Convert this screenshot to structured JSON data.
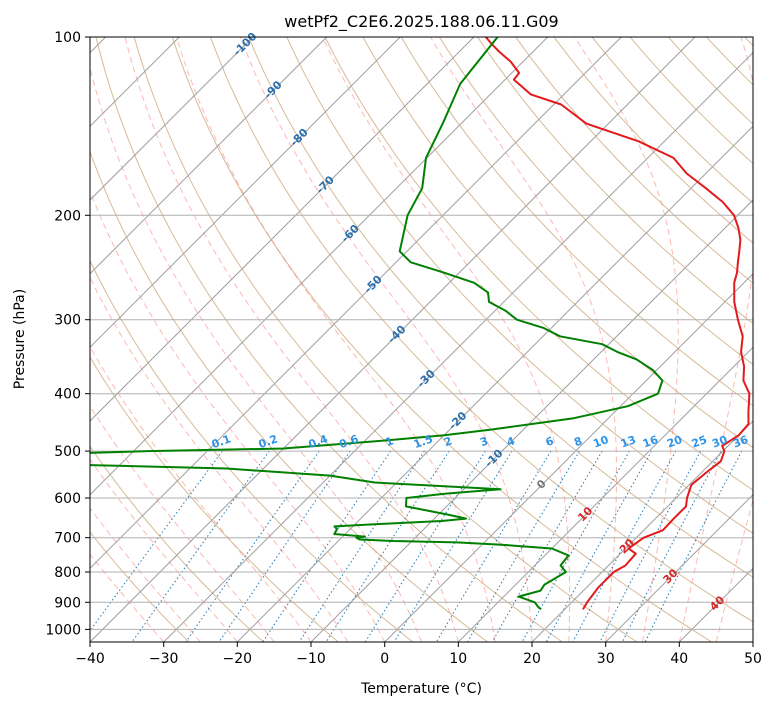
{
  "chart_data": {
    "type": "skew-t",
    "title": "wetPf2_C2E6.2025.188.06.11.G09",
    "xlabel": "Temperature (°C)",
    "ylabel": "Pressure (hPa)",
    "xlim": [
      -40,
      50
    ],
    "ylim": [
      1050,
      100
    ],
    "y_scale": "log",
    "grid": true,
    "x_ticks": [
      "−40",
      "−30",
      "−20",
      "−10",
      "0",
      "10",
      "20",
      "30",
      "40",
      "50"
    ],
    "y_ticks": [
      "100",
      "200",
      "300",
      "400",
      "500",
      "600",
      "700",
      "800",
      "900",
      "1000"
    ],
    "isotherm_labels": [
      "-100",
      "-90",
      "-80",
      "-70",
      "-60",
      "-50",
      "-40",
      "-30",
      "-20",
      "-10",
      "0",
      "10",
      "20",
      "30",
      "40"
    ],
    "mixing_ratio_labels": [
      "0.1",
      "0.2",
      "0.4",
      "0.6",
      "1",
      "1.5",
      "2",
      "3",
      "4",
      "6",
      "8",
      "10",
      "13",
      "16",
      "20",
      "25",
      "30",
      "36"
    ],
    "series": [
      {
        "color": "#e41a1c",
        "x": [
          22.5,
          22.1,
          21.6,
          21.6,
          22.3,
          22.1,
          20.4,
          21.0,
          22.6,
          22.5,
          22.5,
          21.5,
          20.3,
          20.7,
          21.1,
          20.2,
          19.2,
          20.0,
          19.8,
          18.2,
          15.8,
          13.2,
          11.4,
          9.0,
          7.1,
          4.2,
          1.3,
          -1.3,
          -2.3,
          -3.6,
          -4.9,
          -6.3,
          -8.2,
          -10.5,
          -13.8,
          -18.0,
          -22.6,
          -26.5,
          -33.5,
          -43.0,
          -49.0,
          -54.5,
          -58.8,
          -59.0,
          -61.7,
          -64.5,
          -66.5,
          -68.4
        ],
        "y": [
          925,
          900,
          850,
          800,
          780,
          745,
          730,
          700,
          680,
          650,
          620,
          600,
          570,
          540,
          520,
          500,
          490,
          470,
          450,
          430,
          400,
          380,
          360,
          340,
          320,
          300,
          280,
          260,
          250,
          240,
          230,
          220,
          210,
          200,
          190,
          180,
          170,
          160,
          150,
          140,
          130,
          125,
          118,
          115,
          110,
          106,
          103,
          100
        ]
      },
      {
        "color": "#008000",
        "x": [
          16.8,
          16.0,
          15.0,
          12.0,
          14.2,
          13.9,
          14.5,
          15.1,
          13.5,
          13.2,
          10.0,
          3.0,
          -3.7,
          -12.5,
          -17.3,
          -18.0,
          -17.0,
          -21.5,
          -21.8,
          -22.5,
          -16.0,
          -8.7,
          -5.7,
          -8.7,
          -15.5,
          -16.6,
          -12.0,
          -5.0,
          -23.0,
          -30.0,
          -45.0,
          -72.0,
          -80.0,
          -58.0,
          -40.0,
          -27.5,
          -20.0,
          -14.4,
          -4.7,
          1.0,
          3.4,
          2.2,
          -0.5,
          -4.2,
          -7.8,
          -10.9,
          -17.7,
          -21.0,
          -25.8,
          -28.5,
          -32.0,
          -33.4,
          -36.6,
          -42.0,
          -48.0,
          -51.0,
          -54.8,
          -56.5,
          -60.1,
          -62.5,
          -65.5,
          -66.8
        ],
        "y": [
          925,
          915,
          900,
          880,
          860,
          840,
          820,
          800,
          780,
          750,
          730,
          720,
          713,
          709,
          705,
          700,
          697,
          690,
          677,
          670,
          663,
          656,
          650,
          640,
          620,
          600,
          590,
          580,
          565,
          550,
          535,
          525,
          510,
          500,
          495,
          480,
          470,
          460,
          440,
          420,
          400,
          380,
          365,
          350,
          340,
          330,
          320,
          310,
          300,
          290,
          280,
          270,
          260,
          250,
          240,
          230,
          200,
          180,
          160,
          140,
          120,
          100
        ]
      }
    ]
  }
}
